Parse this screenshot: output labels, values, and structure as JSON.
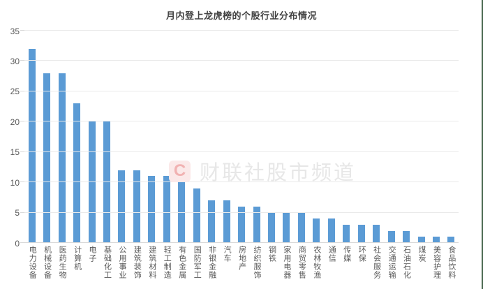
{
  "chart_data": {
    "type": "bar",
    "title": "月内登上龙虎榜的个股行业分布情况",
    "categories": [
      "电力设备",
      "机械设备",
      "医药生物",
      "计算机",
      "电子",
      "基础化工",
      "公用事业",
      "建筑装饰",
      "建筑材料",
      "轻工制造",
      "有色金属",
      "国防军工",
      "非银金融",
      "汽车",
      "房地产",
      "纺织服饰",
      "钢铁",
      "家用电器",
      "商贸零售",
      "农林牧渔",
      "通信",
      "传媒",
      "环保",
      "社会服务",
      "交通运输",
      "石油石化",
      "煤炭",
      "美容护理",
      "食品饮料"
    ],
    "values": [
      32,
      28,
      28,
      23,
      20,
      20,
      12,
      12,
      11,
      11,
      10,
      9,
      7,
      7,
      6,
      6,
      5,
      5,
      5,
      4,
      4,
      3,
      3,
      3,
      2,
      2,
      1,
      1,
      1
    ],
    "xlabel": "",
    "ylabel": "",
    "ylim": [
      0,
      35
    ],
    "y_ticks": [
      0,
      5,
      10,
      15,
      20,
      25,
      30,
      35
    ],
    "grid": true,
    "legend": "none",
    "bar_color": "#5B9BD5"
  },
  "watermark": {
    "logo_letter": "C",
    "text": "财联社股市频道",
    "logo_bg": "#FBE9E9",
    "logo_color": "#F1B2B2",
    "text_color": "#E7E7E7"
  },
  "colors": {
    "background": "#FFFFFF",
    "title_text": "#404040",
    "axis_label": "#595959",
    "gridline": "#EAEAEA",
    "axis_line": "#D9D9D9",
    "right_edge": "#47664D"
  }
}
